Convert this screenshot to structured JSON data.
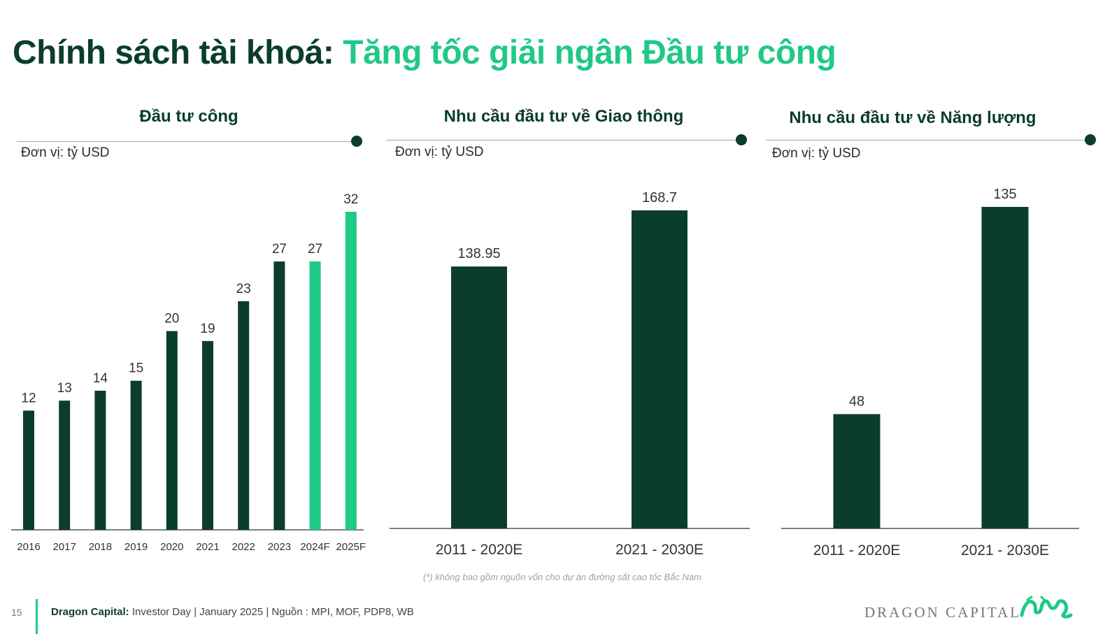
{
  "title": {
    "part1": "Chính sách tài khoá: ",
    "part2": "Tăng tốc giải ngân Đầu tư công"
  },
  "unit_label": "Đơn vị: tỷ USD",
  "colors": {
    "dark": "#0b3d2c",
    "accent": "#1fc986"
  },
  "chart_data": [
    {
      "type": "bar",
      "title": "Đầu tư công",
      "categories": [
        "2016",
        "2017",
        "2018",
        "2019",
        "2020",
        "2021",
        "2022",
        "2023",
        "2024F",
        "2025F"
      ],
      "values": [
        12,
        13,
        14,
        15,
        20,
        19,
        23,
        27,
        27,
        32
      ],
      "labels": [
        "12",
        "13",
        "14",
        "15",
        "20",
        "19",
        "23",
        "27",
        "27",
        "32"
      ],
      "highlight": [
        false,
        false,
        false,
        false,
        false,
        false,
        false,
        false,
        true,
        true
      ],
      "ylim": [
        0,
        32
      ]
    },
    {
      "type": "bar",
      "title": "Nhu cầu đầu tư về Giao thông",
      "categories": [
        "2011 - 2020E",
        "2021 - 2030E"
      ],
      "values": [
        138.95,
        168.7
      ],
      "labels": [
        "138.95",
        "168.7"
      ],
      "ylim": [
        0,
        168.7
      ]
    },
    {
      "type": "bar",
      "title": "Nhu cầu đầu tư về Năng lượng",
      "categories": [
        "2011 - 2020E",
        "2021 - 2030E"
      ],
      "values": [
        48,
        135
      ],
      "labels": [
        "48",
        "135"
      ],
      "ylim": [
        0,
        135
      ]
    }
  ],
  "footnote": "(*) không bao gồm nguồn vốn cho dự án đường sắt cao tốc Bắc Nam",
  "footer": {
    "page": "15",
    "brand_bold": "Dragon Capital:",
    "text": " Investor Day | January 2025 | Nguồn : MPI, MOF, PDP8, WB"
  },
  "brand": "DRAGON CAPITAL",
  "icons": {
    "logo": "dragon-logo-icon"
  }
}
